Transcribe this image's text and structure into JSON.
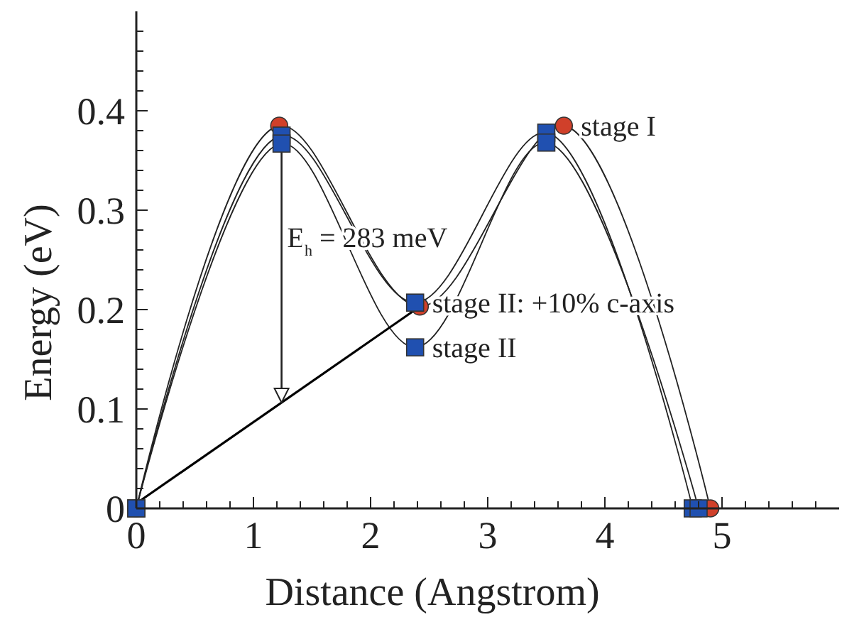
{
  "chart_data": {
    "type": "line",
    "xlabel": "Distance (Angstrom)",
    "ylabel": "Energy (eV)",
    "xlim": [
      0,
      6
    ],
    "ylim": [
      0,
      0.5
    ],
    "xticks": [
      0,
      {
        "value": 0.2,
        "label": null
      },
      {
        "value": 0.4,
        "label": null
      },
      {
        "value": 0.6,
        "label": null
      },
      {
        "value": 0.8,
        "label": null
      },
      1,
      {
        "value": 1.2,
        "label": null
      },
      {
        "value": 1.4,
        "label": null
      },
      {
        "value": 1.6,
        "label": null
      },
      {
        "value": 1.8,
        "label": null
      },
      2,
      {
        "value": 2.2,
        "label": null
      },
      {
        "value": 2.4,
        "label": null
      },
      {
        "value": 2.6,
        "label": null
      },
      {
        "value": 2.8,
        "label": null
      },
      3,
      {
        "value": 3.2,
        "label": null
      },
      {
        "value": 3.4,
        "label": null
      },
      {
        "value": 3.6,
        "label": null
      },
      {
        "value": 3.8,
        "label": null
      },
      4,
      {
        "value": 4.2,
        "label": null
      },
      {
        "value": 4.4,
        "label": null
      },
      {
        "value": 4.6,
        "label": null
      },
      {
        "value": 4.8,
        "label": null
      },
      5,
      {
        "value": 5.2,
        "label": null
      },
      {
        "value": 5.4,
        "label": null
      },
      {
        "value": 5.6,
        "label": null
      },
      {
        "value": 5.8,
        "label": null
      }
    ],
    "yticks": [
      0,
      {
        "value": 0.02,
        "label": null
      },
      {
        "value": 0.04,
        "label": null
      },
      {
        "value": 0.06,
        "label": null
      },
      {
        "value": 0.08,
        "label": null
      },
      0.1,
      {
        "value": 0.12,
        "label": null
      },
      {
        "value": 0.14,
        "label": null
      },
      {
        "value": 0.16,
        "label": null
      },
      {
        "value": 0.18,
        "label": null
      },
      0.2,
      {
        "value": 0.22,
        "label": null
      },
      {
        "value": 0.24,
        "label": null
      },
      {
        "value": 0.26,
        "label": null
      },
      {
        "value": 0.28,
        "label": null
      },
      0.3,
      {
        "value": 0.32,
        "label": null
      },
      {
        "value": 0.34,
        "label": null
      },
      {
        "value": 0.36,
        "label": null
      },
      {
        "value": 0.38,
        "label": null
      },
      0.4,
      {
        "value": 0.42,
        "label": null
      },
      {
        "value": 0.44,
        "label": null
      },
      {
        "value": 0.46,
        "label": null
      },
      {
        "value": 0.48,
        "label": null
      }
    ],
    "series": [
      {
        "name": "stage I",
        "color": "#d0402a",
        "marker": "circle",
        "x": [
          0,
          1.22,
          2.42,
          3.65,
          4.9
        ],
        "values": [
          0,
          0.385,
          0.203,
          0.385,
          0
        ]
      },
      {
        "name": "stage II: +10% c-axis",
        "color": "#2050b0",
        "marker": "square",
        "x": [
          0,
          1.24,
          2.38,
          3.5,
          4.75
        ],
        "values": [
          0,
          0.375,
          0.207,
          0.378,
          0
        ]
      },
      {
        "name": "stage II",
        "color": "#2050b0",
        "marker": "square",
        "x": [
          0,
          1.24,
          2.38,
          3.5,
          4.8
        ],
        "values": [
          0,
          0.367,
          0.162,
          0.368,
          0
        ]
      },
      {
        "color": "#000000",
        "marker": "none",
        "x": [
          0,
          2.42
        ],
        "values": [
          0.005,
          0.203
        ]
      }
    ],
    "annotations": [
      "E$_{h}$ = 283 meV"
    ]
  }
}
